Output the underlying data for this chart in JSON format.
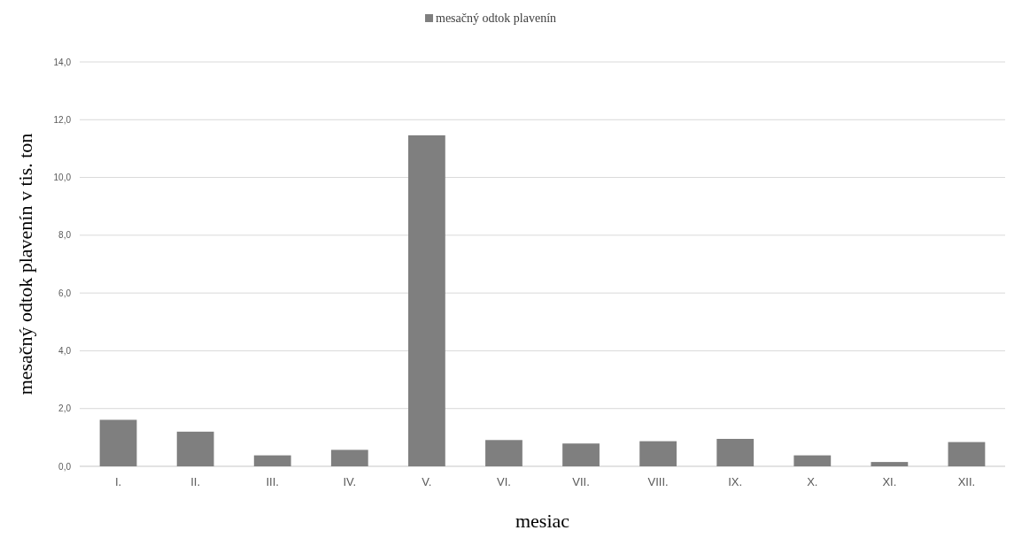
{
  "chart_data": {
    "type": "bar",
    "xlabel": "mesiac",
    "ylabel": "mesačný odtok plavenín v tis. ton",
    "categories": [
      "I.",
      "II.",
      "III.",
      "IV.",
      "V.",
      "VI.",
      "VII.",
      "VIII.",
      "IX.",
      "X.",
      "XI.",
      "XII."
    ],
    "series": [
      {
        "name": "mesačný odtok plavenín",
        "color": "#7f7f7f",
        "values": [
          1.61,
          1.2,
          0.38,
          0.57,
          11.46,
          0.91,
          0.79,
          0.87,
          0.95,
          0.38,
          0.15,
          0.84
        ]
      }
    ],
    "ylim": [
      0,
      14
    ],
    "yticks": [
      {
        "value": 0,
        "label": "0,0"
      },
      {
        "value": 2,
        "label": "2,0"
      },
      {
        "value": 4,
        "label": "4,0"
      },
      {
        "value": 6,
        "label": "6,0"
      },
      {
        "value": 8,
        "label": "8,0"
      },
      {
        "value": 10,
        "label": "10,0"
      },
      {
        "value": 12,
        "label": "12,0"
      },
      {
        "value": 14,
        "label": "14,0"
      }
    ],
    "grid": "y",
    "legend": "top"
  }
}
